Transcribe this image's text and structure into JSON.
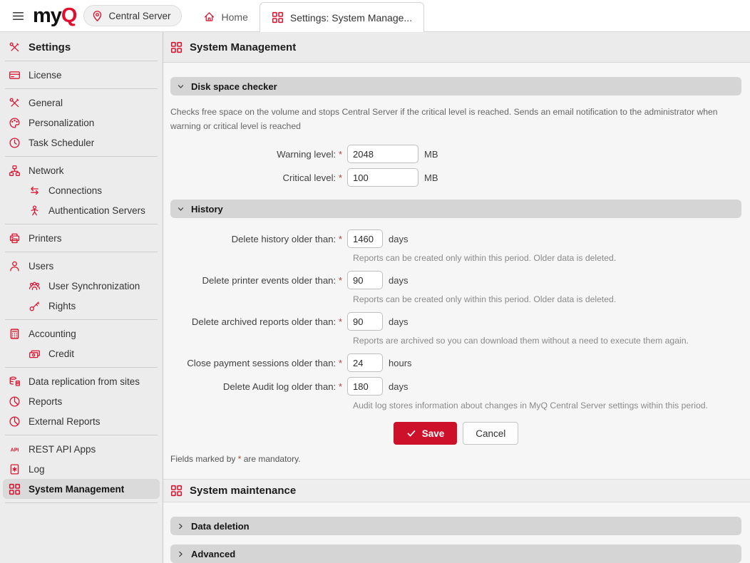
{
  "colors": {
    "brand_red": "#d8142f",
    "save_red": "#cd112b"
  },
  "topbar": {
    "menu_icon": "hamburger-icon",
    "logo_my": "my",
    "logo_q": "Q",
    "server_pill": {
      "icon": "pin-icon",
      "label": "Central Server"
    },
    "tabs": [
      {
        "icon": "home-icon",
        "label": "Home",
        "active": false
      },
      {
        "icon": "grid-icon",
        "label": "Settings: System Manage...",
        "active": true
      }
    ]
  },
  "sidebar": {
    "header": {
      "icon": "tools-icon",
      "label": "Settings"
    },
    "groups": [
      [
        {
          "icon": "license-icon",
          "label": "License"
        }
      ],
      [
        {
          "icon": "tools-icon",
          "label": "General"
        },
        {
          "icon": "palette-icon",
          "label": "Personalization"
        },
        {
          "icon": "clock-icon",
          "label": "Task Scheduler"
        }
      ],
      [
        {
          "icon": "network-icon",
          "label": "Network"
        },
        {
          "icon": "connections-icon",
          "label": "Connections",
          "indent": true
        },
        {
          "icon": "auth-user-icon",
          "label": "Authentication Servers",
          "indent": true
        }
      ],
      [
        {
          "icon": "printer-icon",
          "label": "Printers"
        }
      ],
      [
        {
          "icon": "user-icon",
          "label": "Users"
        },
        {
          "icon": "users-icon",
          "label": "User Synchronization",
          "indent": true
        },
        {
          "icon": "key-icon",
          "label": "Rights",
          "indent": true
        }
      ],
      [
        {
          "icon": "calculator-icon",
          "label": "Accounting"
        },
        {
          "icon": "money-icon",
          "label": "Credit",
          "indent": true
        }
      ],
      [
        {
          "icon": "replication-icon",
          "label": "Data replication from sites"
        },
        {
          "icon": "pie-icon",
          "label": "Reports"
        },
        {
          "icon": "pie-icon",
          "label": "External Reports"
        }
      ],
      [
        {
          "icon": "api-icon",
          "label": "REST API Apps"
        },
        {
          "icon": "log-icon",
          "label": "Log"
        },
        {
          "icon": "grid-icon",
          "label": "System Management",
          "selected": true
        }
      ]
    ]
  },
  "main": {
    "title": {
      "icon": "grid-icon",
      "label": "System Management"
    },
    "disk_section": {
      "chevron": "chevron-down-icon",
      "title": "Disk space checker",
      "description": "Checks free space on the volume and stops Central Server if the critical level is reached. Sends an email notification to the administrator when warning or critical level is reached",
      "fields": [
        {
          "label": "Warning level:",
          "required": "*",
          "value": "2048",
          "unit": "MB",
          "size": "wide"
        },
        {
          "label": "Critical level:",
          "required": "*",
          "value": "100",
          "unit": "MB",
          "size": "wide"
        }
      ]
    },
    "history_section": {
      "chevron": "chevron-down-icon",
      "title": "History",
      "fields": [
        {
          "label": "Delete history older than:",
          "required": "*",
          "value": "1460",
          "unit": "days",
          "help": "Reports can be created only within this period. Older data is deleted."
        },
        {
          "label": "Delete printer events older than:",
          "required": "*",
          "value": "90",
          "unit": "days",
          "help": "Reports can be created only within this period. Older data is deleted."
        },
        {
          "label": "Delete archived reports older than:",
          "required": "*",
          "value": "90",
          "unit": "days",
          "help": "Reports are archived so you can download them without a need to execute them again."
        },
        {
          "label": "Close payment sessions older than:",
          "required": "*",
          "value": "24",
          "unit": "hours"
        },
        {
          "label": "Delete Audit log older than:",
          "required": "*",
          "value": "180",
          "unit": "days",
          "help": "Audit log stores information about changes in MyQ Central Server settings within this period."
        }
      ]
    },
    "buttons": {
      "save_icon": "check-icon",
      "save": "Save",
      "cancel": "Cancel"
    },
    "note": {
      "prefix": "Fields marked by ",
      "star": "*",
      "suffix": " are mandatory."
    },
    "maintenance": {
      "title": {
        "icon": "grid-icon",
        "label": "System maintenance"
      },
      "collapsed_sections": [
        {
          "chevron": "chevron-right-icon",
          "title": "Data deletion"
        },
        {
          "chevron": "chevron-right-icon",
          "title": "Advanced"
        }
      ]
    }
  }
}
